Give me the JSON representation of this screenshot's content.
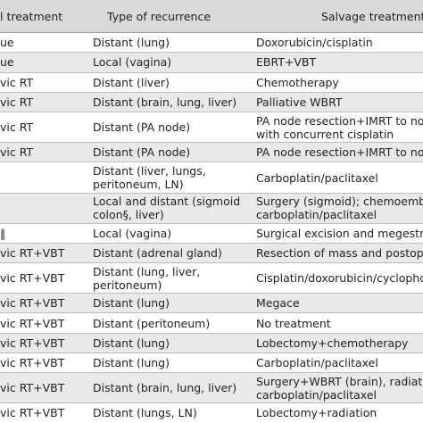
{
  "table": {
    "header": [
      "l treatment",
      "Type of recurrence",
      "Salvage treatment"
    ],
    "rows": [
      [
        [
          "ue"
        ],
        [
          "Distant (lung)"
        ],
        [
          "Doxorubicin/cisplatin"
        ]
      ],
      [
        [
          "ue"
        ],
        [
          "Local (vagina)"
        ],
        [
          "EBRT+VBT"
        ]
      ],
      [
        [
          "vic RT"
        ],
        [
          "Distant (liver)"
        ],
        [
          "Chemotherapy"
        ]
      ],
      [
        [
          "vic RT"
        ],
        [
          "Distant (brain, lung, liver)"
        ],
        [
          "Palliative WBRT"
        ]
      ],
      [
        [
          "vic RT"
        ],
        [
          "Distant (PA node)"
        ],
        [
          "PA node resection+IMRT to nodal",
          "with concurrent cisplatin"
        ]
      ],
      [
        [
          "vic RT"
        ],
        [
          "Distant (PA node)"
        ],
        [
          "PA node resection+IMRT to nodal"
        ]
      ],
      [
        [],
        [
          "Distant (liver, lungs,",
          "peritoneum, LN)"
        ],
        [
          "Carboplatin/paclitaxel"
        ]
      ],
      [
        [],
        [
          "Local and distant (sigmoid",
          "colon§, liver)"
        ],
        [
          "Surgery (sigmoid); chemoemboliz",
          "carboplatin/paclitaxel"
        ]
      ],
      [
        [
          "‖"
        ],
        [
          "Local (vagina)"
        ],
        [
          "Surgical excision and megestrol a"
        ]
      ],
      [
        [
          "vic RT+VBT"
        ],
        [
          "Distant (adrenal gland)"
        ],
        [
          "Resection of mass and postopera"
        ]
      ],
      [
        [
          "vic RT+VBT"
        ],
        [
          "Distant (lung, liver,",
          "peritoneum)"
        ],
        [
          "Cisplatin/doxorubicin/cyclophosp"
        ]
      ],
      [
        [
          "vic RT+VBT"
        ],
        [
          "Distant (lung)"
        ],
        [
          "Megace"
        ]
      ],
      [
        [
          "vic RT+VBT"
        ],
        [
          "Distant (peritoneum)"
        ],
        [
          "No treatment"
        ]
      ],
      [
        [
          "vic RT+VBT"
        ],
        [
          "Distant (lung)"
        ],
        [
          "Lobectomy+chemotherapy"
        ]
      ],
      [
        [
          "vic RT+VBT"
        ],
        [
          "Distant (lung)"
        ],
        [
          "Carboplatin/paclitaxel"
        ]
      ],
      [
        [
          "vic RT+VBT"
        ],
        [
          "Distant (brain, lung, liver)"
        ],
        [
          "Surgery+WBRT (brain), radiation (",
          "carboplatin/paclitaxel"
        ]
      ],
      [
        [
          "vic RT+VBT"
        ],
        [
          "Distant (lungs, LN)"
        ],
        [
          "Lobectomy+radiation"
        ]
      ]
    ]
  }
}
